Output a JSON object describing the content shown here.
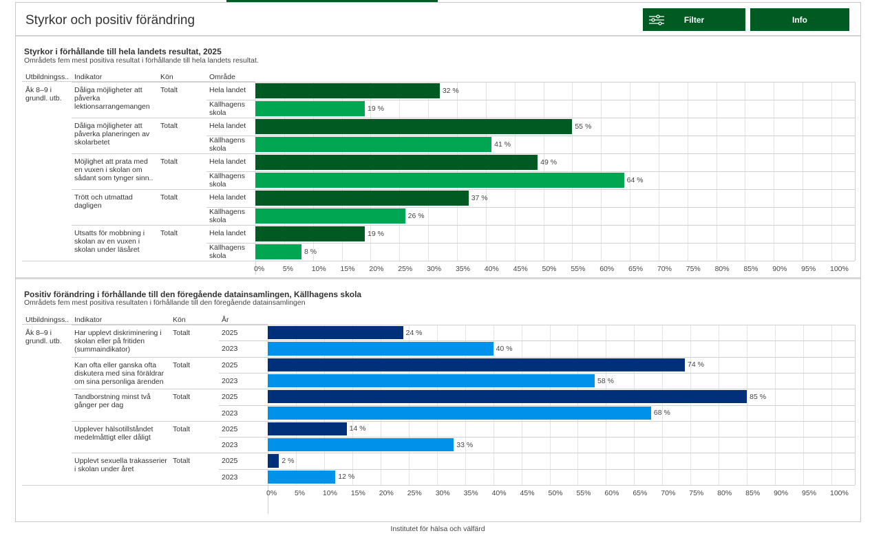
{
  "header": {
    "title": "Styrkor och positiv förändring",
    "filter_label": "Filter",
    "info_label": "Info",
    "filter_icon": "sliders-icon"
  },
  "footer": {
    "text": "Institutet för hälsa och välfärd"
  },
  "chart_data": [
    {
      "type": "bar",
      "orientation": "horizontal",
      "title": "Styrkor i förhållande till hela landets resultat, 2025",
      "subtitle": "Områdets fem mest positiva resultat i förhållande till hela landets resultat.",
      "columns": [
        "Utbildningss..",
        "Indikator",
        "Kön",
        "Område"
      ],
      "group_label": "Åk 8–9 i grundl. utb.",
      "series_colors": {
        "Hela landet": "#005a21",
        "Källhagens skola": "#00a651"
      },
      "xlim": [
        0,
        100
      ],
      "xticks": [
        "0%",
        "5%",
        "10%",
        "15%",
        "20%",
        "25%",
        "30%",
        "35%",
        "40%",
        "45%",
        "50%",
        "55%",
        "60%",
        "65%",
        "70%",
        "75%",
        "80%",
        "85%",
        "90%",
        "95%",
        "100%"
      ],
      "rows": [
        {
          "indicator": "Dåliga möjligheter att påverka lektionsarrangemangen",
          "gender": "Totalt",
          "bars": [
            {
              "label": "Hela landet",
              "value": 32,
              "text": "32 %"
            },
            {
              "label": "Källhagens skola",
              "value": 19,
              "text": "19 %"
            }
          ]
        },
        {
          "indicator": "Dåliga möjligheter att påverka planeringen av skolarbetet",
          "gender": "Totalt",
          "bars": [
            {
              "label": "Hela landet",
              "value": 55,
              "text": "55 %"
            },
            {
              "label": "Källhagens skola",
              "value": 41,
              "text": "41 %"
            }
          ]
        },
        {
          "indicator": "Möjlighet att prata med en vuxen i skolan om sådant som tynger sinn..",
          "gender": "Totalt",
          "bars": [
            {
              "label": "Hela landet",
              "value": 49,
              "text": "49 %"
            },
            {
              "label": "Källhagens skola",
              "value": 64,
              "text": "64 %"
            }
          ]
        },
        {
          "indicator": "Trött och utmattad dagligen",
          "gender": "Totalt",
          "bars": [
            {
              "label": "Hela landet",
              "value": 37,
              "text": "37 %"
            },
            {
              "label": "Källhagens skola",
              "value": 26,
              "text": "26 %"
            }
          ]
        },
        {
          "indicator": "Utsatts för mobbning i skolan av en vuxen i skolan under läsåret",
          "gender": "Totalt",
          "bars": [
            {
              "label": "Hela landet",
              "value": 19,
              "text": "19 %"
            },
            {
              "label": "Källhagens skola",
              "value": 8,
              "text": "8 %"
            }
          ]
        }
      ]
    },
    {
      "type": "bar",
      "orientation": "horizontal",
      "title": "Positiv förändring i förhållande till den föregående datainsamlingen, Källhagens skola",
      "subtitle": "Områdets fem mest positiva resultaten i förhållande till den föregående datainsamlingen",
      "columns": [
        "Utbildningss..",
        "Indikator",
        "Kön",
        "År"
      ],
      "group_label": "Åk 8–9 i grundl. utb.",
      "series_colors": {
        "2025": "#00307a",
        "2023": "#0091ea"
      },
      "xlim": [
        0,
        100
      ],
      "xticks": [
        "0%",
        "5%",
        "10%",
        "15%",
        "20%",
        "25%",
        "30%",
        "35%",
        "40%",
        "45%",
        "50%",
        "55%",
        "60%",
        "65%",
        "70%",
        "75%",
        "80%",
        "85%",
        "90%",
        "95%",
        "100%"
      ],
      "rows": [
        {
          "indicator": "Har upplevt diskriminering i skolan eller på fritiden (summaindikator)",
          "gender": "Totalt",
          "bars": [
            {
              "label": "2025",
              "value": 24,
              "text": "24 %"
            },
            {
              "label": "2023",
              "value": 40,
              "text": "40 %"
            }
          ]
        },
        {
          "indicator": "Kan ofta eller ganska ofta diskutera med sina föräldrar om sina personliga ärenden",
          "gender": "Totalt",
          "bars": [
            {
              "label": "2025",
              "value": 74,
              "text": "74 %"
            },
            {
              "label": "2023",
              "value": 58,
              "text": "58 %"
            }
          ]
        },
        {
          "indicator": "Tandborstning minst två gånger per dag",
          "gender": "Totalt",
          "bars": [
            {
              "label": "2025",
              "value": 85,
              "text": "85 %"
            },
            {
              "label": "2023",
              "value": 68,
              "text": "68 %"
            }
          ]
        },
        {
          "indicator": "Upplever hälsotillståndet medelmåttigt eller dåligt",
          "gender": "Totalt",
          "bars": [
            {
              "label": "2025",
              "value": 14,
              "text": "14 %"
            },
            {
              "label": "2023",
              "value": 33,
              "text": "33 %"
            }
          ]
        },
        {
          "indicator": "Upplevt sexuella trakasserier i skolan under året",
          "gender": "Totalt",
          "bars": [
            {
              "label": "2025",
              "value": 2,
              "text": "2 %"
            },
            {
              "label": "2023",
              "value": 12,
              "text": "12 %"
            }
          ]
        }
      ]
    }
  ]
}
